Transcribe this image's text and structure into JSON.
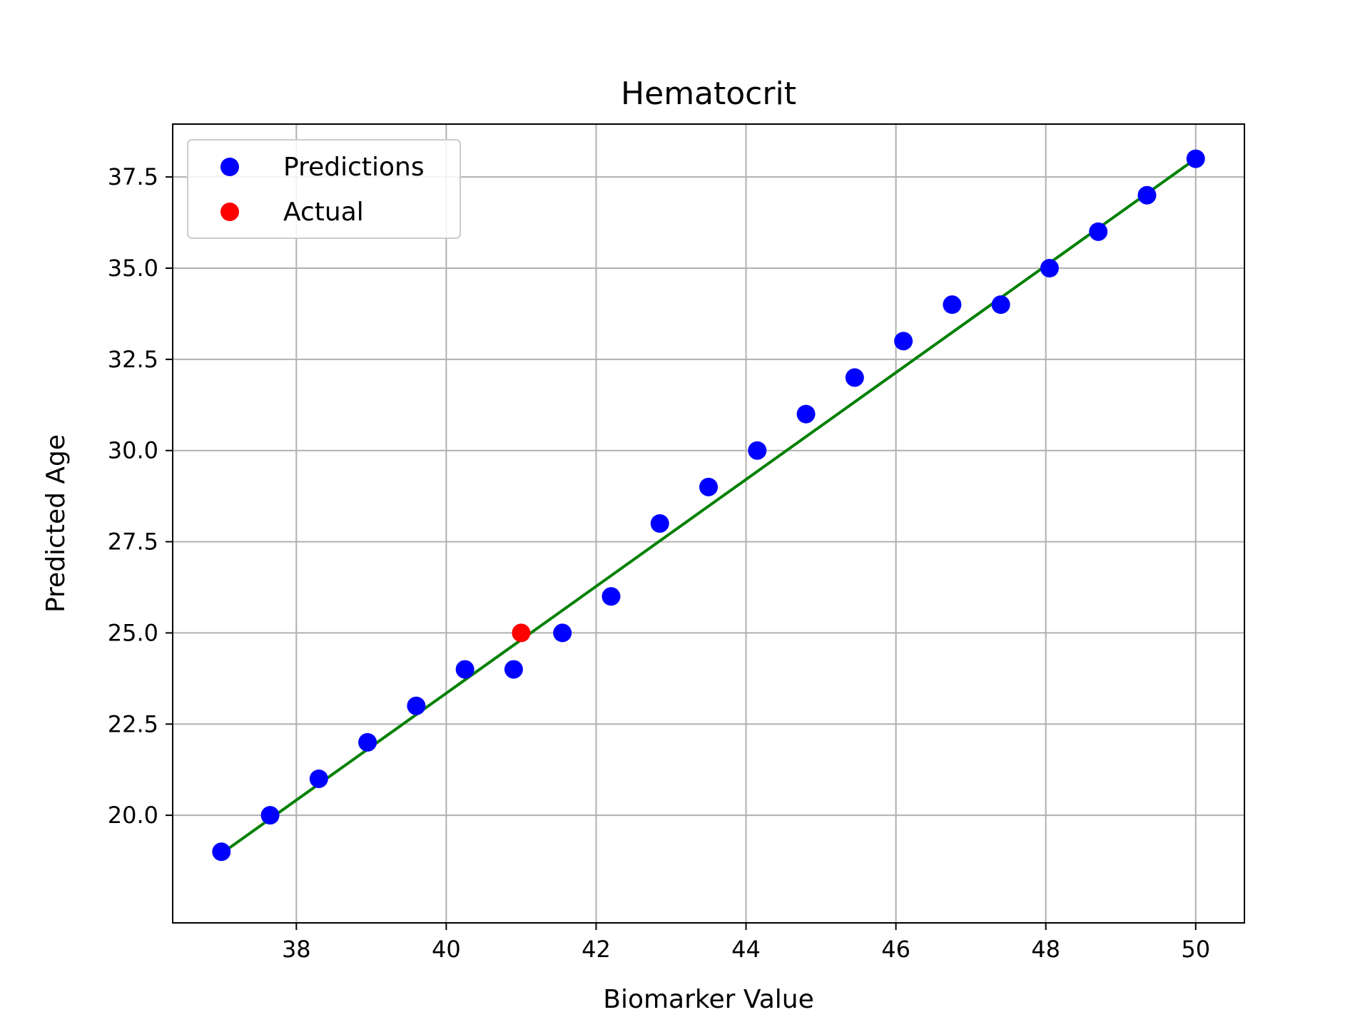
{
  "chart_data": {
    "type": "scatter",
    "title": "Hematocrit",
    "xlabel": "Biomarker Value",
    "ylabel": "Predicted Age",
    "xlim": [
      36.35,
      50.65
    ],
    "ylim": [
      17.05,
      38.95
    ],
    "xticks": [
      38,
      40,
      42,
      44,
      46,
      48,
      50
    ],
    "yticks": [
      20.0,
      22.5,
      25.0,
      27.5,
      30.0,
      32.5,
      35.0,
      37.5
    ],
    "grid": true,
    "legend_position": "upper-left",
    "series": [
      {
        "name": "Predictions",
        "kind": "scatter",
        "color": "#0000ff",
        "points": [
          {
            "x": 37.0,
            "y": 19
          },
          {
            "x": 37.65,
            "y": 20
          },
          {
            "x": 38.3,
            "y": 21
          },
          {
            "x": 38.95,
            "y": 22
          },
          {
            "x": 39.6,
            "y": 23
          },
          {
            "x": 40.25,
            "y": 24
          },
          {
            "x": 40.9,
            "y": 24
          },
          {
            "x": 41.55,
            "y": 25
          },
          {
            "x": 42.2,
            "y": 26
          },
          {
            "x": 42.85,
            "y": 28
          },
          {
            "x": 43.5,
            "y": 29
          },
          {
            "x": 44.15,
            "y": 30
          },
          {
            "x": 44.8,
            "y": 31
          },
          {
            "x": 45.45,
            "y": 32
          },
          {
            "x": 46.1,
            "y": 33
          },
          {
            "x": 46.75,
            "y": 34
          },
          {
            "x": 47.4,
            "y": 34
          },
          {
            "x": 48.05,
            "y": 35
          },
          {
            "x": 48.7,
            "y": 36
          },
          {
            "x": 49.35,
            "y": 37
          },
          {
            "x": 50.0,
            "y": 38
          }
        ]
      },
      {
        "name": "Actual",
        "kind": "scatter",
        "color": "#ff0000",
        "points": [
          {
            "x": 41.0,
            "y": 25
          }
        ]
      },
      {
        "kind": "line",
        "color": "#008000",
        "points": [
          {
            "x": 37.0,
            "y": 18.95
          },
          {
            "x": 50.0,
            "y": 38.0
          }
        ]
      }
    ]
  }
}
